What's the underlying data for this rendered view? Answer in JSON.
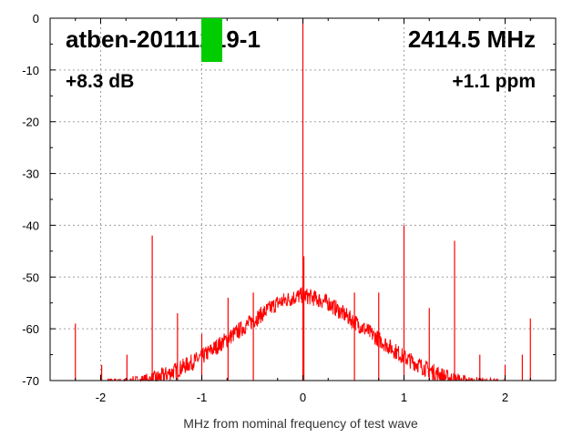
{
  "chart_data": {
    "type": "line",
    "xlabel": "MHz from nominal frequency of test wave",
    "ylabel": "",
    "xlim": [
      -2.5,
      2.5
    ],
    "ylim": [
      -70,
      0
    ],
    "x_ticks": [
      -2,
      -1,
      0,
      1,
      2
    ],
    "y_ticks": [
      0,
      -10,
      -20,
      -30,
      -40,
      -50,
      -60,
      -70
    ],
    "grid": true,
    "annotations": {
      "device": "atben-20111219-1",
      "frequency": "2414.5 MHz",
      "gain": "+8.3 dB",
      "offset": "+1.1 ppm"
    },
    "status_color": "#00cc00",
    "series": [
      {
        "color": "#ff0000",
        "noise_floor": {
          "x": [
            -2.0,
            -1.75,
            -1.5,
            -1.25,
            -1.0,
            -0.75,
            -0.5,
            -0.25,
            -0.1,
            0.0,
            0.1,
            0.25,
            0.5,
            0.75,
            1.0,
            1.25,
            1.5,
            1.75,
            2.0
          ],
          "y": [
            -71,
            -71,
            -70,
            -68,
            -65.5,
            -62,
            -58.5,
            -55,
            -54,
            -53.5,
            -54,
            -55,
            -58.5,
            -62,
            -65.5,
            -68,
            -70,
            -71,
            -71
          ]
        },
        "spurs": [
          {
            "x": 0.0,
            "y": 0
          },
          {
            "x": 0.01,
            "y": -46
          },
          {
            "x": -2.25,
            "y": -59
          },
          {
            "x": -1.99,
            "y": -67
          },
          {
            "x": -1.74,
            "y": -65
          },
          {
            "x": -1.49,
            "y": -42
          },
          {
            "x": -1.24,
            "y": -57
          },
          {
            "x": -1.0,
            "y": -61
          },
          {
            "x": -0.74,
            "y": -54
          },
          {
            "x": -0.49,
            "y": -53
          },
          {
            "x": 0.51,
            "y": -53
          },
          {
            "x": 0.75,
            "y": -53
          },
          {
            "x": 1.0,
            "y": -40
          },
          {
            "x": 1.25,
            "y": -56
          },
          {
            "x": 1.5,
            "y": -43
          },
          {
            "x": 1.75,
            "y": -65
          },
          {
            "x": 2.0,
            "y": -67
          },
          {
            "x": 2.17,
            "y": -65
          },
          {
            "x": 2.25,
            "y": -58
          }
        ]
      }
    ]
  }
}
